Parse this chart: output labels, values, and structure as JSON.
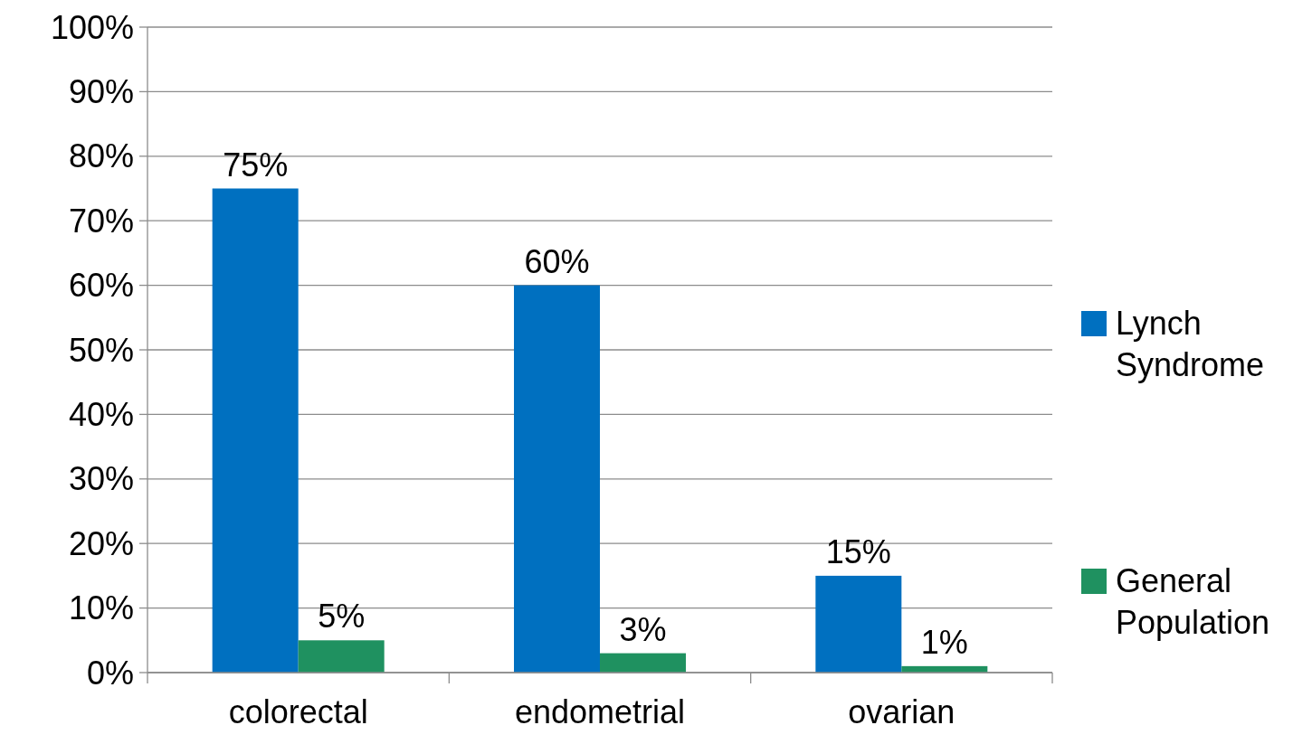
{
  "chart_data": {
    "type": "bar",
    "categories": [
      "colorectal",
      "endometrial",
      "ovarian"
    ],
    "series": [
      {
        "name": "Lynch Syndrome",
        "color": "#0070c0",
        "values": [
          75,
          60,
          15
        ],
        "value_labels": [
          "75%",
          "60%",
          "15%"
        ]
      },
      {
        "name": "General Population",
        "color": "#1f9160",
        "values": [
          5,
          3,
          1
        ],
        "value_labels": [
          "5%",
          "3%",
          "1%"
        ]
      }
    ],
    "ylim": [
      0,
      100
    ],
    "yticks": [
      {
        "value": 0,
        "label": "0%"
      },
      {
        "value": 10,
        "label": "10%"
      },
      {
        "value": 20,
        "label": "20%"
      },
      {
        "value": 30,
        "label": "30%"
      },
      {
        "value": 40,
        "label": "40%"
      },
      {
        "value": 50,
        "label": "50%"
      },
      {
        "value": 60,
        "label": "60%"
      },
      {
        "value": 70,
        "label": "70%"
      },
      {
        "value": 80,
        "label": "80%"
      },
      {
        "value": 90,
        "label": "90%"
      },
      {
        "value": 100,
        "label": "100%"
      }
    ],
    "grid": "y",
    "legend": "right"
  }
}
